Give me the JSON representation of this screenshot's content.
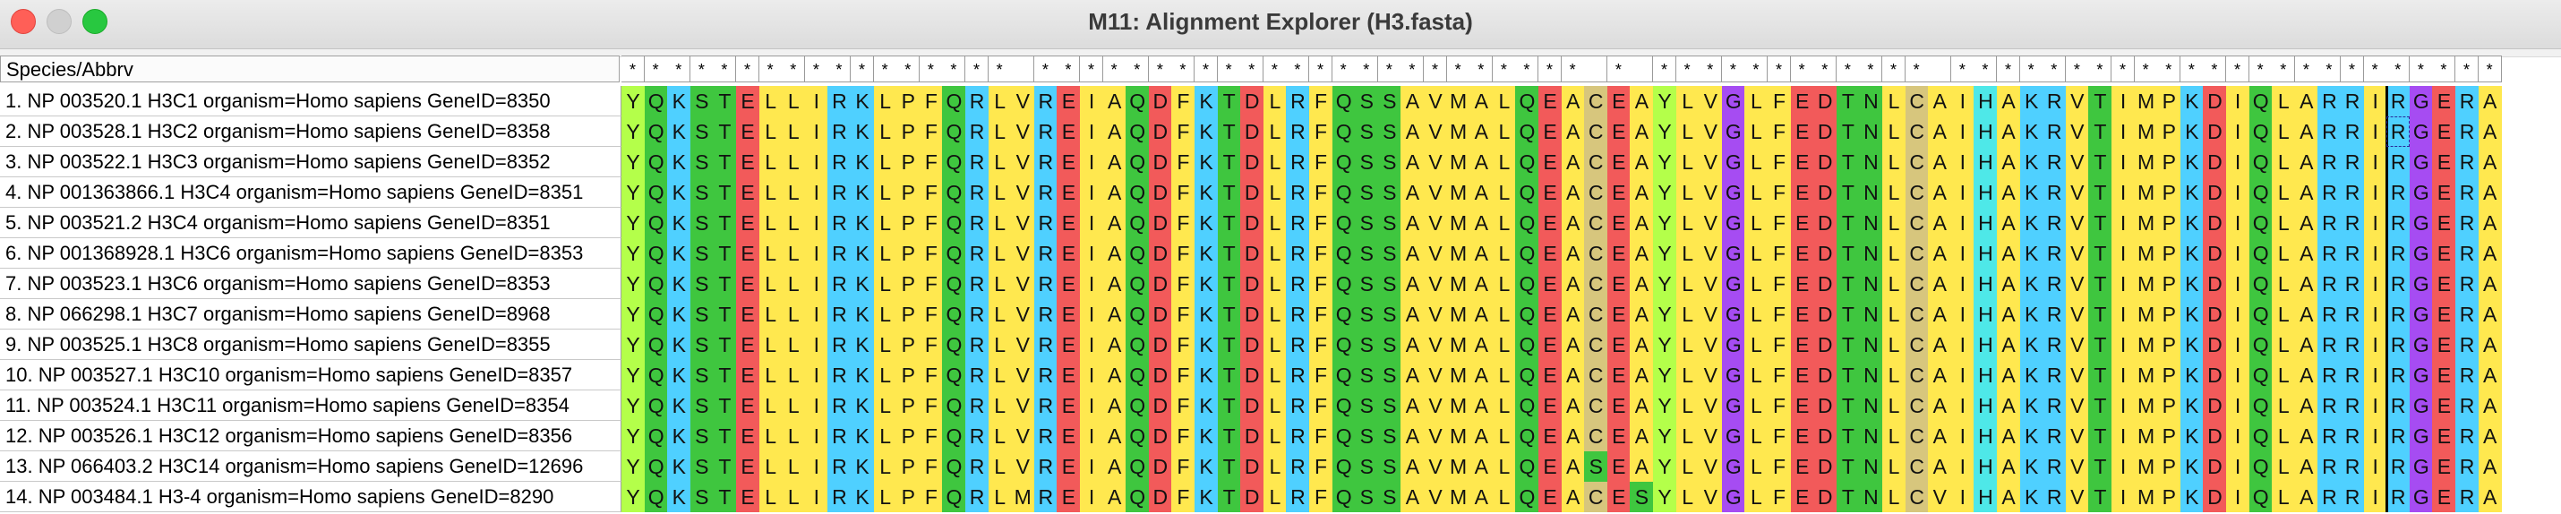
{
  "window": {
    "title": "M11: Alignment Explorer (H3.fasta)"
  },
  "names_header": "Species/Abbrv",
  "sequences": [
    {
      "label": "1. NP 003520.1 H3C1 organism=Homo sapiens GeneID=8350",
      "seq": "YQKSTELLIRKLPFQRLVREIAQDFKTDLRFQSSAVMALQEACEAYLVGLFEDTNLCAIHAKRVTIMPKDIQLARRIRGERA"
    },
    {
      "label": "2. NP 003528.1 H3C2 organism=Homo sapiens GeneID=8358",
      "seq": "YQKSTELLIRKLPFQRLVREIAQDFKTDLRFQSSAVMALQEACEAYLVGLFEDTNLCAIHAKRVTIMPKDIQLARRIRGERA"
    },
    {
      "label": "3. NP 003522.1 H3C3 organism=Homo sapiens GeneID=8352",
      "seq": "YQKSTELLIRKLPFQRLVREIAQDFKTDLRFQSSAVMALQEACEAYLVGLFEDTNLCAIHAKRVTIMPKDIQLARRIRGERA"
    },
    {
      "label": "4. NP 001363866.1 H3C4 organism=Homo sapiens GeneID=8351",
      "seq": "YQKSTELLIRKLPFQRLVREIAQDFKTDLRFQSSAVMALQEACEAYLVGLFEDTNLCAIHAKRVTIMPKDIQLARRIRGERA"
    },
    {
      "label": "5. NP 003521.2 H3C4 organism=Homo sapiens GeneID=8351",
      "seq": "YQKSTELLIRKLPFQRLVREIAQDFKTDLRFQSSAVMALQEACEAYLVGLFEDTNLCAIHAKRVTIMPKDIQLARRIRGERA"
    },
    {
      "label": "6. NP 001368928.1 H3C6 organism=Homo sapiens GeneID=8353",
      "seq": "YQKSTELLIRKLPFQRLVREIAQDFKTDLRFQSSAVMALQEACEAYLVGLFEDTNLCAIHAKRVTIMPKDIQLARRIRGERA"
    },
    {
      "label": "7. NP 003523.1 H3C6 organism=Homo sapiens GeneID=8353",
      "seq": "YQKSTELLIRKLPFQRLVREIAQDFKTDLRFQSSAVMALQEACEAYLVGLFEDTNLCAIHAKRVTIMPKDIQLARRIRGERA"
    },
    {
      "label": "8. NP 066298.1 H3C7 organism=Homo sapiens GeneID=8968",
      "seq": "YQKSTELLIRKLPFQRLVREIAQDFKTDLRFQSSAVMALQEACEAYLVGLFEDTNLCAIHAKRVTIMPKDIQLARRIRGERA"
    },
    {
      "label": "9. NP 003525.1 H3C8 organism=Homo sapiens GeneID=8355",
      "seq": "YQKSTELLIRKLPFQRLVREIAQDFKTDLRFQSSAVMALQEACEAYLVGLFEDTNLCAIHAKRVTIMPKDIQLARRIRGERA"
    },
    {
      "label": "10. NP 003527.1 H3C10 organism=Homo sapiens GeneID=8357",
      "seq": "YQKSTELLIRKLPFQRLVREIAQDFKTDLRFQSSAVMALQEACEAYLVGLFEDTNLCAIHAKRVTIMPKDIQLARRIRGERA"
    },
    {
      "label": "11. NP 003524.1 H3C11 organism=Homo sapiens GeneID=8354",
      "seq": "YQKSTELLIRKLPFQRLVREIAQDFKTDLRFQSSAVMALQEACEAYLVGLFEDTNLCAIHAKRVTIMPKDIQLARRIRGERA"
    },
    {
      "label": "12. NP 003526.1 H3C12 organism=Homo sapiens GeneID=8356",
      "seq": "YQKSTELLIRKLPFQRLVREIAQDFKTDLRFQSSAVMALQEACEAYLVGLFEDTNLCAIHAKRVTIMPKDIQLARRIRGERA"
    },
    {
      "label": "13. NP 066403.2 H3C14 organism=Homo sapiens GeneID=12696",
      "seq": "YQKSTELLIRKLPFQRLVREIAQDFKTDLRFQSSAVMALQEASEAYLVGLFEDTNLCAIHAKRVTIMPKDIQLARRIRGERA"
    },
    {
      "label": "14. NP 003484.1 H3-4 organism=Homo sapiens GeneID=8290",
      "seq": "YQKSTELLIRKLPFQRLMREIAQDFKTDLRFQSSAVMALQEACESYLVGLFEDTNLCVIHAKRVTIMPKDIQLARRIRGERA"
    }
  ],
  "colors": {
    "A": "#ffe84f",
    "V": "#ffe84f",
    "L": "#ffe84f",
    "I": "#ffe84f",
    "M": "#ffe84f",
    "F": "#ffe84f",
    "P": "#ffe84f",
    "W": "#ffe84f",
    "Y": "#b4ff4a",
    "K": "#4fd0ff",
    "R": "#4fd0ff",
    "H": "#4ee8e8",
    "D": "#f25a5a",
    "E": "#f25a5a",
    "G": "#a64cf2",
    "C": "#d7c67d",
    "S": "#3fc63f",
    "T": "#3fc63f",
    "N": "#3fc63f",
    "Q": "#3fc63f"
  },
  "cursor": {
    "col": 77
  },
  "selection": {
    "row": 2,
    "col": 77
  }
}
